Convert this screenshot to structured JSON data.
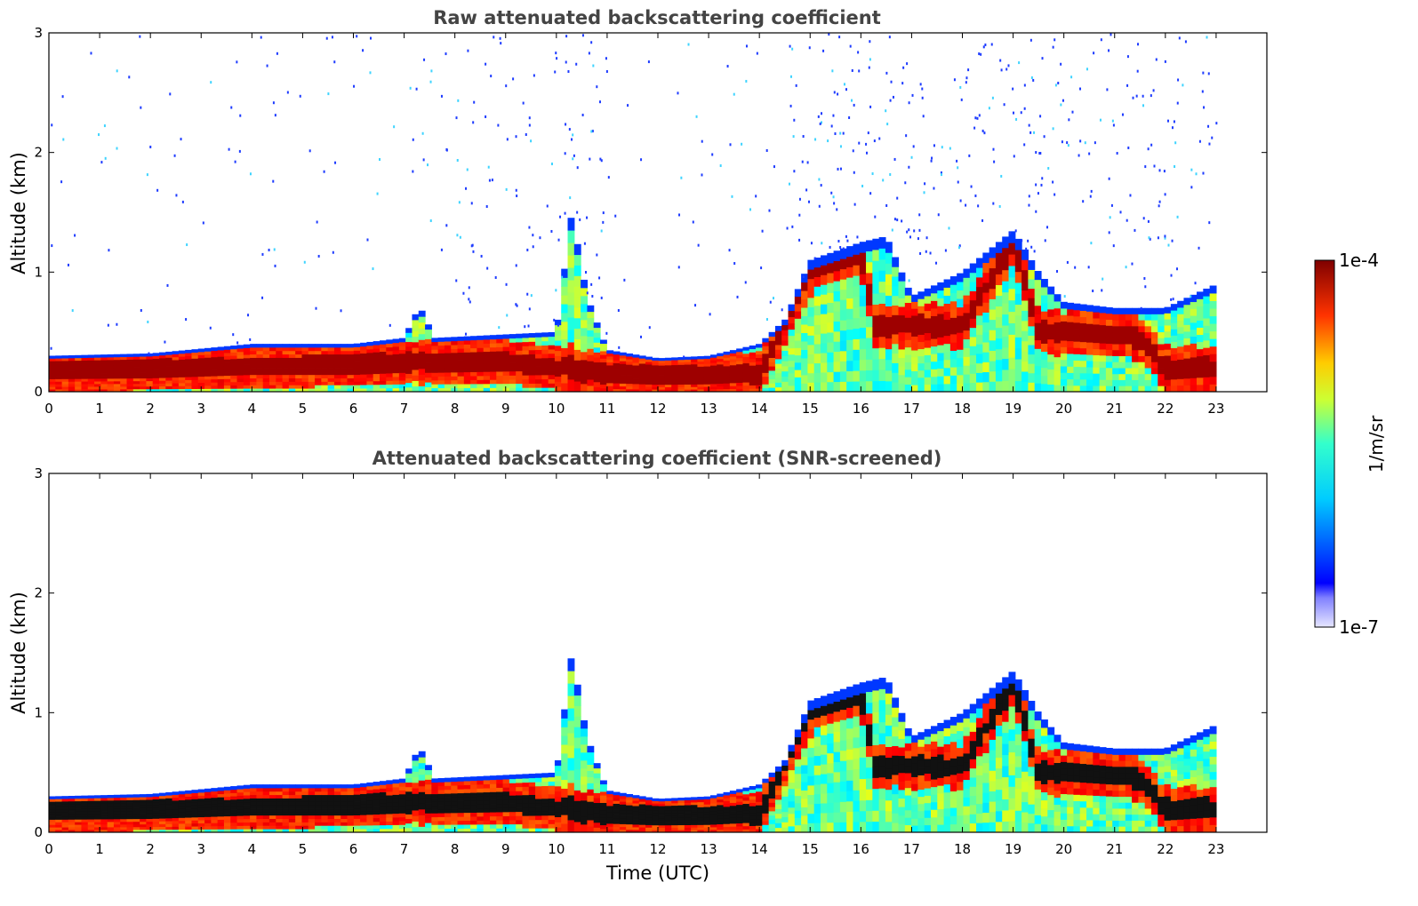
{
  "chart_data": {
    "type": "heatmap",
    "x_ticks": [
      "0",
      "1",
      "2",
      "3",
      "4",
      "5",
      "6",
      "7",
      "8",
      "9",
      "10",
      "11",
      "12",
      "13",
      "14",
      "15",
      "16",
      "17",
      "18",
      "19",
      "20",
      "21",
      "22",
      "23"
    ],
    "y_ticks": [
      "0",
      "1",
      "2",
      "3"
    ],
    "xlim": [
      0,
      24
    ],
    "ylim": [
      0,
      3
    ],
    "colorbar": {
      "label": "1/m/sr",
      "min_label": "1e-7",
      "max_label": "1e-4",
      "colormap": "jet"
    },
    "panels": [
      {
        "title": "Raw attenuated backscattering coefficient",
        "xlabel": "",
        "ylabel": "Altitude (km)",
        "screened": false
      },
      {
        "title": "Attenuated backscattering coefficient (SNR-screened)",
        "xlabel": "Time (UTC)",
        "ylabel": "Altitude (km)",
        "screened": true
      }
    ],
    "features": {
      "data_end_hour": 23.0,
      "boundary_layer_top_km": [
        [
          0,
          0.3
        ],
        [
          2,
          0.32
        ],
        [
          3,
          0.36
        ],
        [
          4,
          0.4
        ],
        [
          6,
          0.4
        ],
        [
          7,
          0.45
        ],
        [
          7.3,
          0.72
        ],
        [
          7.6,
          0.45
        ],
        [
          10,
          0.5
        ],
        [
          10.3,
          1.5
        ],
        [
          10.6,
          0.8
        ],
        [
          11,
          0.35
        ],
        [
          12,
          0.28
        ],
        [
          13,
          0.3
        ],
        [
          14,
          0.4
        ],
        [
          14.5,
          0.6
        ],
        [
          15,
          1.1
        ],
        [
          16,
          1.25
        ],
        [
          16.5,
          1.3
        ],
        [
          17,
          0.8
        ],
        [
          18,
          1.0
        ],
        [
          19,
          1.35
        ],
        [
          19.5,
          1.0
        ],
        [
          20,
          0.75
        ],
        [
          21,
          0.7
        ],
        [
          22,
          0.7
        ],
        [
          23,
          0.9
        ]
      ],
      "dense_layer_center_km": [
        [
          0,
          0.18
        ],
        [
          3,
          0.2
        ],
        [
          5,
          0.22
        ],
        [
          7,
          0.25
        ],
        [
          9,
          0.25
        ],
        [
          11,
          0.15
        ],
        [
          13,
          0.14
        ],
        [
          14,
          0.15
        ],
        [
          15,
          1.0
        ],
        [
          16,
          1.15
        ],
        [
          16.3,
          0.55
        ],
        [
          18,
          0.55
        ],
        [
          19,
          1.25
        ],
        [
          19.5,
          0.5
        ],
        [
          21.5,
          0.45
        ],
        [
          22,
          0.2
        ],
        [
          23,
          0.2
        ]
      ]
    }
  }
}
